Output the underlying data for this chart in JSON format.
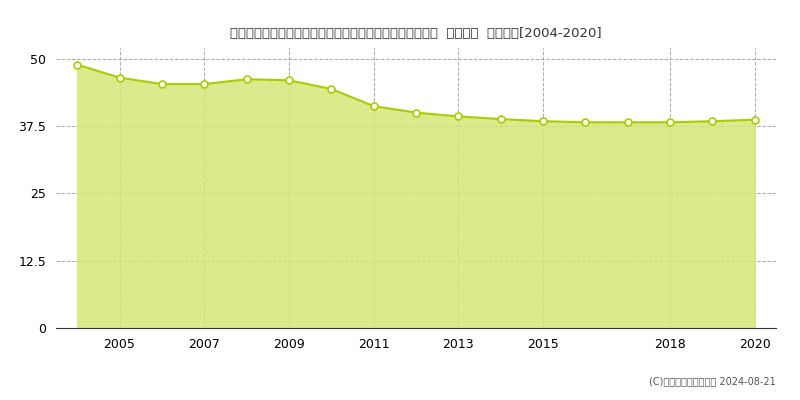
{
  "title": "埼玉県さいたま市見沼区大字東新井字海老沼中７４３番２  地価公示  地価推移[2004-2020]",
  "years": [
    2004,
    2005,
    2006,
    2007,
    2008,
    2009,
    2010,
    2011,
    2012,
    2013,
    2014,
    2015,
    2016,
    2017,
    2018,
    2019,
    2020
  ],
  "values": [
    48.9,
    46.5,
    45.3,
    45.3,
    46.2,
    46.0,
    44.4,
    41.2,
    40.0,
    39.3,
    38.8,
    38.4,
    38.2,
    38.2,
    38.2,
    38.4,
    38.7
  ],
  "line_color": "#aacc00",
  "fill_color": "#d4e87a",
  "fill_alpha": 0.85,
  "marker_color": "white",
  "marker_edge_color": "#aacc00",
  "bg_color": "#ffffff",
  "grid_color": "#aaaaaa",
  "yticks": [
    0,
    12.5,
    25,
    37.5,
    50
  ],
  "ylim": [
    0,
    52
  ],
  "xlim": [
    2003.5,
    2020.5
  ],
  "xtick_years": [
    2005,
    2007,
    2009,
    2011,
    2013,
    2015,
    2018,
    2020
  ],
  "copyright": "(C)土地価格ドットコム 2024-08-21"
}
